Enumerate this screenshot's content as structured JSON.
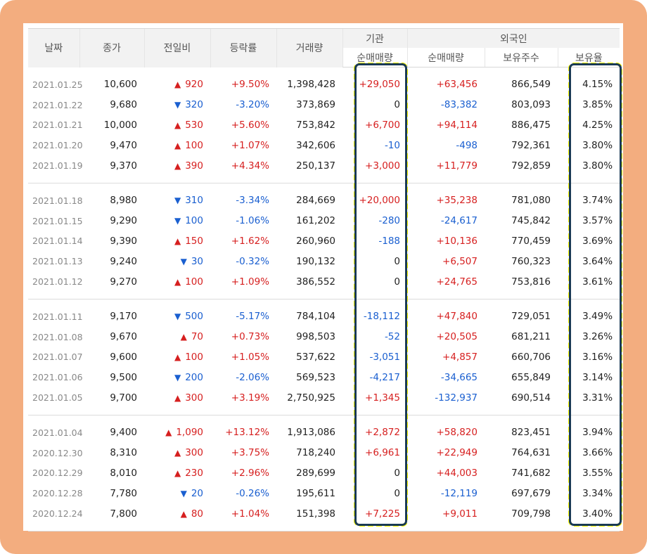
{
  "headers": {
    "date": "날짜",
    "close": "종가",
    "change": "전일비",
    "rate": "등락률",
    "volume": "거래량",
    "institution": "기관",
    "foreign": "외국인",
    "inst_net": "순매매량",
    "foreign_net": "순매매량",
    "holdings": "보유주수",
    "ratio": "보유율"
  },
  "colors": {
    "up": "#d61f1f",
    "down": "#1a5fd0",
    "frame": "#f3ad7f",
    "highlight": "#ffff00"
  },
  "rows": [
    {
      "date": "2021.01.25",
      "close": "10,600",
      "dir": "up",
      "change": "920",
      "rate": "+9.50%",
      "volume": "1,398,428",
      "inst": "+29,050",
      "fnet": "+63,456",
      "hold": "866,549",
      "ratio": "4.15%"
    },
    {
      "date": "2021.01.22",
      "close": "9,680",
      "dir": "down",
      "change": "320",
      "rate": "-3.20%",
      "volume": "373,869",
      "inst": "0",
      "fnet": "-83,382",
      "hold": "803,093",
      "ratio": "3.85%"
    },
    {
      "date": "2021.01.21",
      "close": "10,000",
      "dir": "up",
      "change": "530",
      "rate": "+5.60%",
      "volume": "753,842",
      "inst": "+6,700",
      "fnet": "+94,114",
      "hold": "886,475",
      "ratio": "4.25%"
    },
    {
      "date": "2021.01.20",
      "close": "9,470",
      "dir": "up",
      "change": "100",
      "rate": "+1.07%",
      "volume": "342,606",
      "inst": "-10",
      "fnet": "-498",
      "hold": "792,361",
      "ratio": "3.80%"
    },
    {
      "date": "2021.01.19",
      "close": "9,370",
      "dir": "up",
      "change": "390",
      "rate": "+4.34%",
      "volume": "250,137",
      "inst": "+3,000",
      "fnet": "+11,779",
      "hold": "792,859",
      "ratio": "3.80%"
    },
    {
      "date": "2021.01.18",
      "close": "8,980",
      "dir": "down",
      "change": "310",
      "rate": "-3.34%",
      "volume": "284,669",
      "inst": "+20,000",
      "fnet": "+35,238",
      "hold": "781,080",
      "ratio": "3.74%"
    },
    {
      "date": "2021.01.15",
      "close": "9,290",
      "dir": "down",
      "change": "100",
      "rate": "-1.06%",
      "volume": "161,202",
      "inst": "-280",
      "fnet": "-24,617",
      "hold": "745,842",
      "ratio": "3.57%"
    },
    {
      "date": "2021.01.14",
      "close": "9,390",
      "dir": "up",
      "change": "150",
      "rate": "+1.62%",
      "volume": "260,960",
      "inst": "-188",
      "fnet": "+10,136",
      "hold": "770,459",
      "ratio": "3.69%"
    },
    {
      "date": "2021.01.13",
      "close": "9,240",
      "dir": "down",
      "change": "30",
      "rate": "-0.32%",
      "volume": "190,132",
      "inst": "0",
      "fnet": "+6,507",
      "hold": "760,323",
      "ratio": "3.64%"
    },
    {
      "date": "2021.01.12",
      "close": "9,270",
      "dir": "up",
      "change": "100",
      "rate": "+1.09%",
      "volume": "386,552",
      "inst": "0",
      "fnet": "+24,765",
      "hold": "753,816",
      "ratio": "3.61%"
    },
    {
      "date": "2021.01.11",
      "close": "9,170",
      "dir": "down",
      "change": "500",
      "rate": "-5.17%",
      "volume": "784,104",
      "inst": "-18,112",
      "fnet": "+47,840",
      "hold": "729,051",
      "ratio": "3.49%"
    },
    {
      "date": "2021.01.08",
      "close": "9,670",
      "dir": "up",
      "change": "70",
      "rate": "+0.73%",
      "volume": "998,503",
      "inst": "-52",
      "fnet": "+20,505",
      "hold": "681,211",
      "ratio": "3.26%"
    },
    {
      "date": "2021.01.07",
      "close": "9,600",
      "dir": "up",
      "change": "100",
      "rate": "+1.05%",
      "volume": "537,622",
      "inst": "-3,051",
      "fnet": "+4,857",
      "hold": "660,706",
      "ratio": "3.16%"
    },
    {
      "date": "2021.01.06",
      "close": "9,500",
      "dir": "down",
      "change": "200",
      "rate": "-2.06%",
      "volume": "569,523",
      "inst": "-4,217",
      "fnet": "-34,665",
      "hold": "655,849",
      "ratio": "3.14%"
    },
    {
      "date": "2021.01.05",
      "close": "9,700",
      "dir": "up",
      "change": "300",
      "rate": "+3.19%",
      "volume": "2,750,925",
      "inst": "+1,345",
      "fnet": "-132,937",
      "hold": "690,514",
      "ratio": "3.31%"
    },
    {
      "date": "2021.01.04",
      "close": "9,400",
      "dir": "up",
      "change": "1,090",
      "rate": "+13.12%",
      "volume": "1,913,086",
      "inst": "+2,872",
      "fnet": "+58,820",
      "hold": "823,451",
      "ratio": "3.94%"
    },
    {
      "date": "2020.12.30",
      "close": "8,310",
      "dir": "up",
      "change": "300",
      "rate": "+3.75%",
      "volume": "718,240",
      "inst": "+6,961",
      "fnet": "+22,949",
      "hold": "764,631",
      "ratio": "3.66%"
    },
    {
      "date": "2020.12.29",
      "close": "8,010",
      "dir": "up",
      "change": "230",
      "rate": "+2.96%",
      "volume": "289,699",
      "inst": "0",
      "fnet": "+44,003",
      "hold": "741,682",
      "ratio": "3.55%"
    },
    {
      "date": "2020.12.28",
      "close": "7,780",
      "dir": "down",
      "change": "20",
      "rate": "-0.26%",
      "volume": "195,611",
      "inst": "0",
      "fnet": "-12,119",
      "hold": "697,679",
      "ratio": "3.34%"
    },
    {
      "date": "2020.12.24",
      "close": "7,800",
      "dir": "up",
      "change": "80",
      "rate": "+1.04%",
      "volume": "151,398",
      "inst": "+7,225",
      "fnet": "+9,011",
      "hold": "709,798",
      "ratio": "3.40%"
    }
  ]
}
